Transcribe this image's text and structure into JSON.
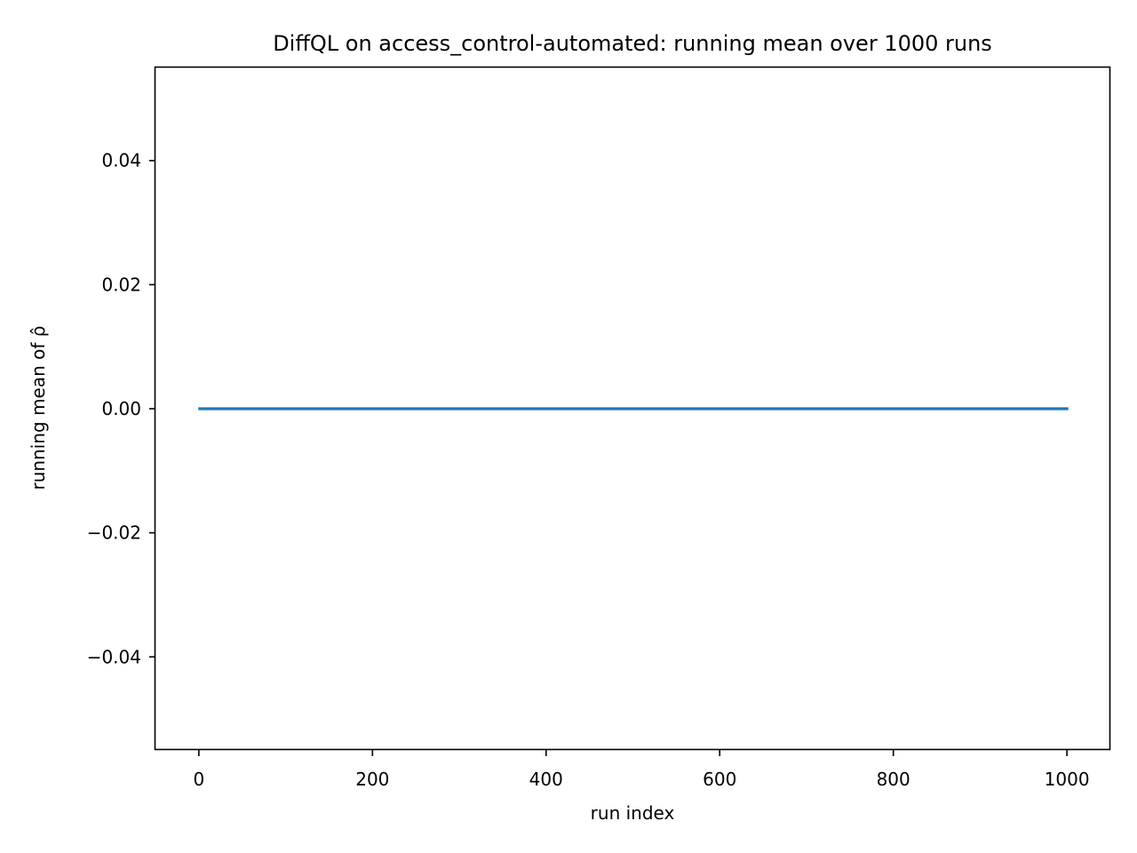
{
  "chart_data": {
    "type": "line",
    "title": "DiffQL on access_control-automated: running mean over 1000 runs",
    "xlabel": "run index",
    "ylabel": "running mean of ρ̂",
    "xlim": [
      -50,
      1050
    ],
    "ylim": [
      -0.055,
      0.055
    ],
    "xticks": [
      0,
      200,
      400,
      600,
      800,
      1000
    ],
    "xtick_labels": [
      "0",
      "200",
      "400",
      "600",
      "800",
      "1000"
    ],
    "yticks": [
      0.04,
      0.02,
      0.0,
      -0.02,
      -0.04
    ],
    "ytick_labels": [
      "0.04",
      "0.02",
      "0.00",
      "−0.02",
      "−0.04"
    ],
    "grid": false,
    "series": [
      {
        "color": "#1f77b4",
        "x": [
          1,
          1000
        ],
        "y": [
          0.0,
          0.0
        ]
      }
    ]
  }
}
